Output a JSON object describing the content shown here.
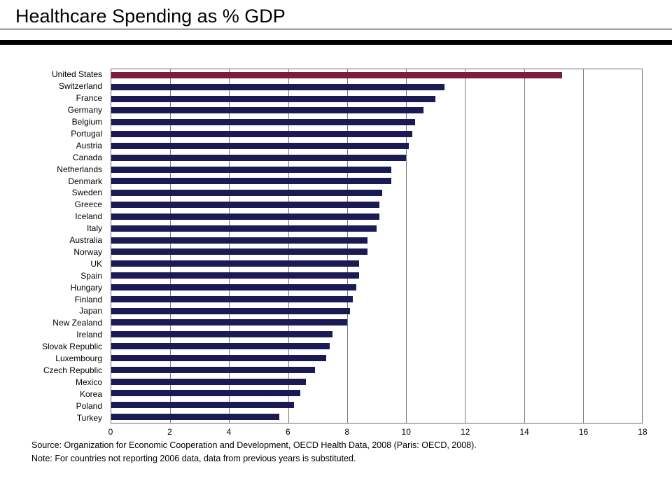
{
  "slide": {
    "title": "Healthcare Spending as % GDP",
    "source_line": "Source: Organization for Economic Cooperation and Development, OECD Health Data, 2008 (Paris: OECD, 2008).",
    "note_line": "Note: For countries not reporting 2006 data, data from previous years is substituted."
  },
  "chart_data": {
    "type": "bar",
    "orientation": "horizontal",
    "title": "Healthcare Spending as % GDP",
    "xlabel": "",
    "ylabel": "",
    "xlim": [
      0,
      18
    ],
    "xticks": [
      0,
      2,
      4,
      6,
      8,
      10,
      12,
      14,
      16,
      18
    ],
    "grid": true,
    "bar_color": "#1a1a55",
    "highlight_color": "#7b1e3c",
    "highlight_category": "United States",
    "categories": [
      "United States",
      "Switzerland",
      "France",
      "Germany",
      "Belgium",
      "Portugal",
      "Austria",
      "Canada",
      "Netherlands",
      "Denmark",
      "Sweden",
      "Greece",
      "Iceland",
      "Italy",
      "Australia",
      "Norway",
      "UK",
      "Spain",
      "Hungary",
      "Finland",
      "Japan",
      "New Zealand",
      "Ireland",
      "Slovak Republic",
      "Luxembourg",
      "Czech Republic",
      "Mexico",
      "Korea",
      "Poland",
      "Turkey"
    ],
    "values": [
      15.3,
      11.3,
      11.0,
      10.6,
      10.3,
      10.2,
      10.1,
      10.0,
      9.5,
      9.5,
      9.2,
      9.1,
      9.1,
      9.0,
      8.7,
      8.7,
      8.4,
      8.4,
      8.3,
      8.2,
      8.1,
      8.0,
      7.5,
      7.4,
      7.3,
      6.9,
      6.6,
      6.4,
      6.2,
      5.7
    ]
  }
}
